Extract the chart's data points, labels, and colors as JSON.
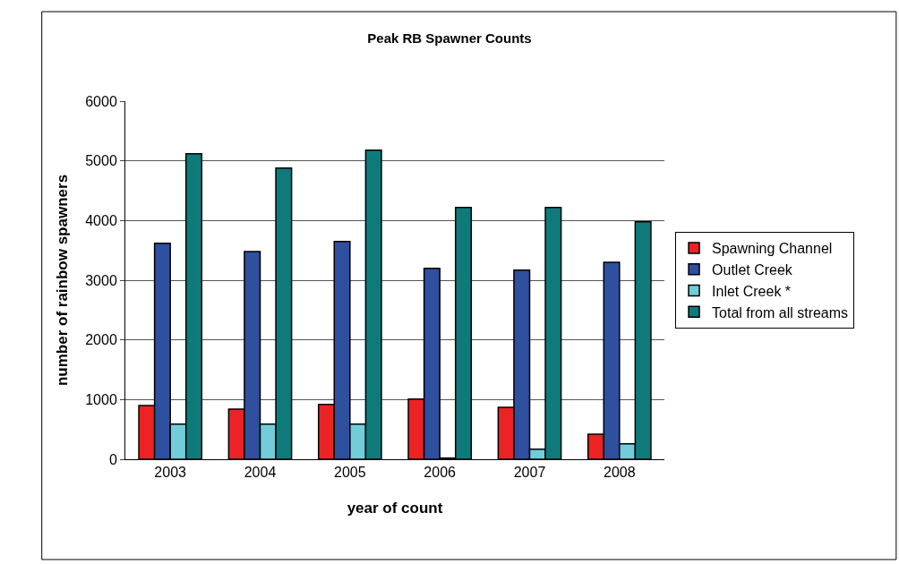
{
  "chart_data": {
    "type": "bar",
    "title": "Peak RB Spawner Counts",
    "xlabel": "year of count",
    "ylabel": "number of rainbow spawners",
    "categories": [
      "2003",
      "2004",
      "2005",
      "2006",
      "2007",
      "2008"
    ],
    "series": [
      {
        "name": "Spawning Channel",
        "color": "#ed2224",
        "values": [
          900,
          840,
          920,
          1010,
          870,
          420
        ]
      },
      {
        "name": "Outlet Creek",
        "color": "#2f4f9f",
        "values": [
          3620,
          3480,
          3650,
          3200,
          3170,
          3300
        ]
      },
      {
        "name": "Inlet Creek *",
        "color": "#70cdd9",
        "values": [
          590,
          590,
          590,
          20,
          170,
          260
        ]
      },
      {
        "name": "Total from all streams",
        "color": "#0e7b7a",
        "values": [
          5120,
          4880,
          5180,
          4220,
          4220,
          3980
        ]
      }
    ],
    "ylim": [
      0,
      6000
    ],
    "yticks": [
      0,
      1000,
      2000,
      3000,
      4000,
      5000,
      6000
    ],
    "grid": "y",
    "legend": "right"
  }
}
